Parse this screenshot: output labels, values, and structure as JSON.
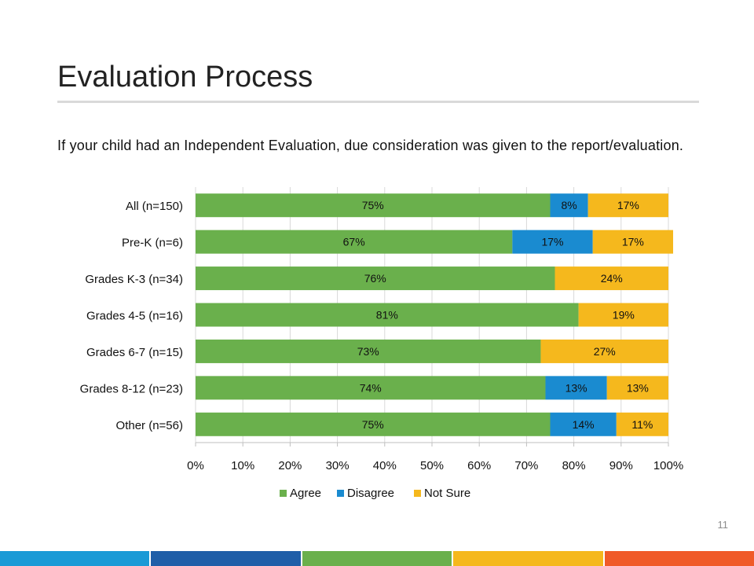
{
  "slide": {
    "title": "Evaluation Process",
    "subtitle": "If your child had an Independent Evaluation, due consideration was given to the report/evaluation.",
    "page_number": "11"
  },
  "colors": {
    "agree": "#6ab04c",
    "disagree": "#1a8bd0",
    "not_sure": "#f5b81d",
    "footer": [
      "#1a9ad6",
      "#1f5ea8",
      "#6ab04c",
      "#f5b81d",
      "#f05a28"
    ]
  },
  "chart_data": {
    "type": "bar",
    "orientation": "horizontal",
    "stacked": true,
    "categories": [
      "All (n=150)",
      "Pre-K (n=6)",
      "Grades K-3 (n=34)",
      "Grades 4-5 (n=16)",
      "Grades 6-7 (n=15)",
      "Grades 8-12 (n=23)",
      "Other (n=56)"
    ],
    "series": [
      {
        "name": "Agree",
        "values": [
          75,
          67,
          76,
          81,
          73,
          74,
          75
        ],
        "labels": [
          "75%",
          "67%",
          "76%",
          "81%",
          "73%",
          "74%",
          "75%"
        ]
      },
      {
        "name": "Disagree",
        "values": [
          8,
          17,
          0,
          0,
          0,
          13,
          14
        ],
        "labels": [
          "8%",
          "17%",
          "",
          "",
          "",
          "13%",
          "14%"
        ]
      },
      {
        "name": "Not Sure",
        "values": [
          17,
          17,
          24,
          19,
          27,
          13,
          11
        ],
        "labels": [
          "17%",
          "17%",
          "24%",
          "19%",
          "27%",
          "13%",
          "11%"
        ]
      }
    ],
    "xlim": [
      0,
      100
    ],
    "x_ticks": [
      "0%",
      "10%",
      "20%",
      "30%",
      "40%",
      "50%",
      "60%",
      "70%",
      "80%",
      "90%",
      "100%"
    ],
    "grid": true,
    "legend_position": "bottom"
  }
}
